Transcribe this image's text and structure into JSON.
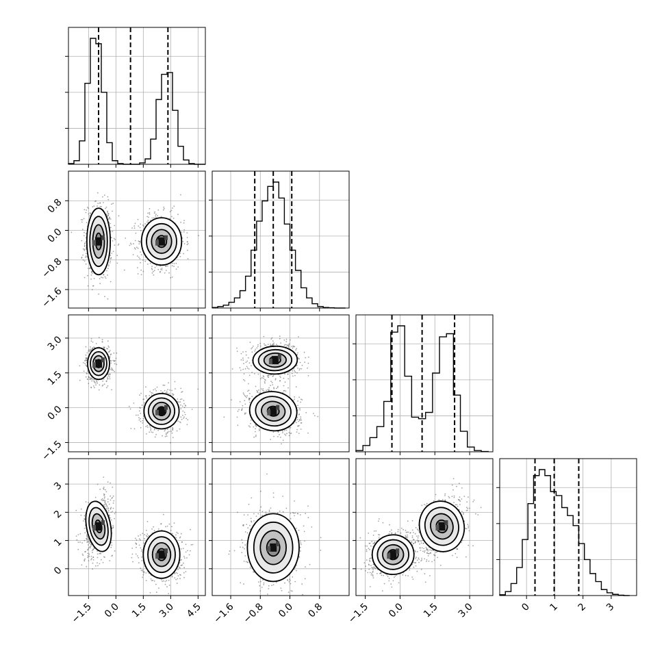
{
  "chart_data": {
    "type": "corner",
    "grid": true,
    "n_parameters": 4,
    "parameters": [
      {
        "index": 0,
        "axis_range": [
          -2.6,
          4.9
        ],
        "ticks": [
          -1.5,
          0.0,
          1.5,
          3.0,
          4.5
        ],
        "tick_labels": [
          "−1.5",
          "0.0",
          "1.5",
          "3.0",
          "4.5"
        ]
      },
      {
        "index": 1,
        "axis_range": [
          -2.1,
          1.6
        ],
        "ticks": [
          -1.6,
          -0.8,
          0.0,
          0.8
        ],
        "tick_labels": [
          "−1.6",
          "−0.8",
          "0.0",
          "0.8"
        ]
      },
      {
        "index": 2,
        "axis_range": [
          -1.9,
          4.0
        ],
        "ticks": [
          -1.5,
          0.0,
          1.5,
          3.0
        ],
        "tick_labels": [
          "−1.5",
          "0.0",
          "1.5",
          "3.0"
        ]
      },
      {
        "index": 3,
        "axis_range": [
          -0.95,
          3.9
        ],
        "ticks": [
          0,
          1,
          2,
          3
        ],
        "tick_labels": [
          "0",
          "1",
          "2",
          "3"
        ]
      }
    ],
    "histograms": [
      {
        "parameter": 0,
        "edges": [
          -2.6,
          -2.3,
          -2.0,
          -1.7,
          -1.4,
          -1.1,
          -0.8,
          -0.5,
          -0.2,
          0.1,
          0.4,
          0.7,
          1.0,
          1.3,
          1.6,
          1.9,
          2.2,
          2.5,
          2.8,
          3.1,
          3.4,
          3.7,
          4.0,
          4.3,
          4.6,
          4.9
        ],
        "counts": [
          0.2,
          1.0,
          6.5,
          22.5,
          35.0,
          33.5,
          20.0,
          6.0,
          1.0,
          0.2,
          0.0,
          0.0,
          0.0,
          0.4,
          1.5,
          7.0,
          18.0,
          25.0,
          25.5,
          15.0,
          5.0,
          1.2,
          0.2,
          0.0,
          0.0
        ],
        "quantiles": [
          -0.95,
          0.8,
          2.85
        ]
      },
      {
        "parameter": 1,
        "edges": [
          -2.1,
          -1.95,
          -1.8,
          -1.65,
          -1.5,
          -1.35,
          -1.2,
          -1.05,
          -0.9,
          -0.75,
          -0.6,
          -0.45,
          -0.3,
          -0.15,
          0.0,
          0.15,
          0.3,
          0.45,
          0.6,
          0.75,
          0.9,
          1.05,
          1.2,
          1.35,
          1.5
        ],
        "counts": [
          0.2,
          0.5,
          1.0,
          2.0,
          3.5,
          6.0,
          11.0,
          20.0,
          30.0,
          37.0,
          42.0,
          43.5,
          38.0,
          29.0,
          20.0,
          13.0,
          7.0,
          3.5,
          1.5,
          0.5,
          0.2,
          0.1,
          0.0,
          0.0
        ],
        "quantiles": [
          -0.95,
          -0.45,
          0.05
        ]
      },
      {
        "parameter": 2,
        "edges": [
          -1.9,
          -1.6,
          -1.3,
          -1.0,
          -0.7,
          -0.4,
          -0.1,
          0.2,
          0.5,
          0.8,
          1.1,
          1.4,
          1.7,
          2.0,
          2.3,
          2.6,
          2.9,
          3.2,
          3.5,
          3.8
        ],
        "counts": [
          0.4,
          2.0,
          4.5,
          8.0,
          16.0,
          38.0,
          40.0,
          24.0,
          11.0,
          10.5,
          12.5,
          25.0,
          36.5,
          37.5,
          18.0,
          6.5,
          1.5,
          0.4,
          0.1
        ],
        "quantiles": [
          -0.35,
          0.95,
          2.35
        ]
      },
      {
        "parameter": 3,
        "edges": [
          -0.95,
          -0.75,
          -0.55,
          -0.35,
          -0.15,
          0.05,
          0.25,
          0.45,
          0.65,
          0.85,
          1.05,
          1.25,
          1.45,
          1.65,
          1.85,
          2.05,
          2.25,
          2.45,
          2.65,
          2.85,
          3.05,
          3.25,
          3.45,
          3.65
        ],
        "counts": [
          0.2,
          1.0,
          3.0,
          7.0,
          14.0,
          23.0,
          30.0,
          31.5,
          30.0,
          26.0,
          25.0,
          22.0,
          20.0,
          17.5,
          13.0,
          9.0,
          5.5,
          3.5,
          1.5,
          0.7,
          0.3,
          0.1,
          0.0
        ],
        "quantiles": [
          0.3,
          0.98,
          1.85
        ]
      }
    ],
    "scatter_panels": [
      {
        "x_param": 0,
        "y_param": 1,
        "modes": [
          {
            "center": [
              -0.95,
              -0.3
            ],
            "sd": [
              0.32,
              0.45
            ],
            "rho": 0.0
          },
          {
            "center": [
              2.5,
              -0.3
            ],
            "sd": [
              0.55,
              0.32
            ],
            "rho": 0.0
          }
        ]
      },
      {
        "x_param": 0,
        "y_param": 2,
        "modes": [
          {
            "center": [
              -0.95,
              1.9
            ],
            "sd": [
              0.3,
              0.34
            ],
            "rho": 0.0
          },
          {
            "center": [
              2.5,
              -0.15
            ],
            "sd": [
              0.48,
              0.38
            ],
            "rho": 0.0
          }
        ]
      },
      {
        "x_param": 1,
        "y_param": 2,
        "modes": [
          {
            "center": [
              -0.4,
              2.05
            ],
            "sd": [
              0.3,
              0.3
            ],
            "rho": 0.05
          },
          {
            "center": [
              -0.45,
              -0.15
            ],
            "sd": [
              0.32,
              0.42
            ],
            "rho": -0.25
          }
        ]
      },
      {
        "x_param": 0,
        "y_param": 3,
        "modes": [
          {
            "center": [
              -0.95,
              1.5
            ],
            "sd": [
              0.33,
              0.45
            ],
            "rho": 0.3
          },
          {
            "center": [
              2.5,
              0.5
            ],
            "sd": [
              0.5,
              0.42
            ],
            "rho": 0.0
          }
        ]
      },
      {
        "x_param": 1,
        "y_param": 3,
        "modes": [
          {
            "center": [
              -0.45,
              0.75
            ],
            "sd": [
              0.35,
              0.6
            ],
            "rho": 0.0
          }
        ]
      },
      {
        "x_param": 2,
        "y_param": 3,
        "modes": [
          {
            "center": [
              -0.3,
              0.5
            ],
            "sd": [
              0.45,
              0.35
            ],
            "rho": 0.15
          },
          {
            "center": [
              1.8,
              1.5
            ],
            "sd": [
              0.48,
              0.45
            ],
            "rho": 0.4
          }
        ]
      }
    ],
    "contour_levels_sigma": [
      0.5,
      1.0,
      1.5,
      2.0
    ]
  }
}
